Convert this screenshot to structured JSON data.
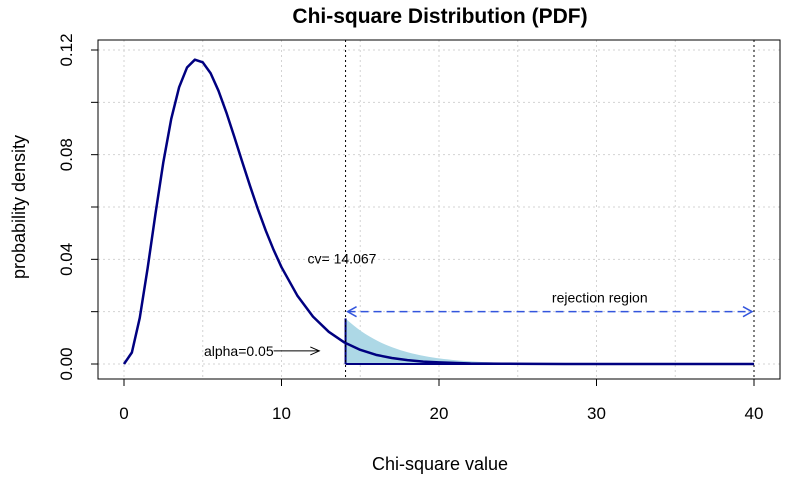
{
  "chart_data": {
    "type": "line",
    "title": "Chi-square Distribution (PDF)",
    "xlabel": "Chi-square value",
    "ylabel": "probability density",
    "xlim": [
      0,
      40
    ],
    "ylim": [
      0,
      0.12
    ],
    "x_ticks": [
      0,
      10,
      20,
      30,
      40
    ],
    "x_tick_labels": [
      "0",
      "10",
      "20",
      "30",
      "40"
    ],
    "y_ticks": [
      0,
      0.04,
      0.08,
      0.12
    ],
    "y_tick_labels": [
      "0.00",
      "0.04",
      "0.08",
      "0.12"
    ],
    "grid": true,
    "degrees_of_freedom": 7,
    "series": [
      {
        "color": "#000080",
        "x": [
          0,
          0.5,
          1,
          1.5,
          2,
          2.5,
          3,
          3.5,
          4,
          4.5,
          5,
          5.5,
          6,
          6.5,
          7,
          7.5,
          8,
          8.5,
          9,
          9.5,
          10,
          11,
          12,
          13,
          14,
          15,
          16,
          17,
          18,
          19,
          20,
          22,
          24,
          26,
          28,
          30,
          34,
          40
        ],
        "y": [
          0,
          0.0044,
          0.0176,
          0.0366,
          0.0575,
          0.0772,
          0.0937,
          0.1058,
          0.1133,
          0.1163,
          0.1153,
          0.1111,
          0.1044,
          0.0961,
          0.0869,
          0.0774,
          0.0681,
          0.0592,
          0.051,
          0.0436,
          0.037,
          0.0262,
          0.0181,
          0.0123,
          0.0082,
          0.0054,
          0.0035,
          0.0023,
          0.0015,
          0.0009,
          0.0006,
          0.0002,
          0.0001,
          4e-05,
          1e-05,
          0.0,
          0.0,
          0.0
        ]
      }
    ],
    "critical_value": 14.067,
    "critical_label": "cv= 14.067",
    "alpha_label": "alpha=0.05",
    "rejection_label": "rejection region",
    "shade_color": "#add8e6",
    "arrow_color": "#3355dd"
  }
}
